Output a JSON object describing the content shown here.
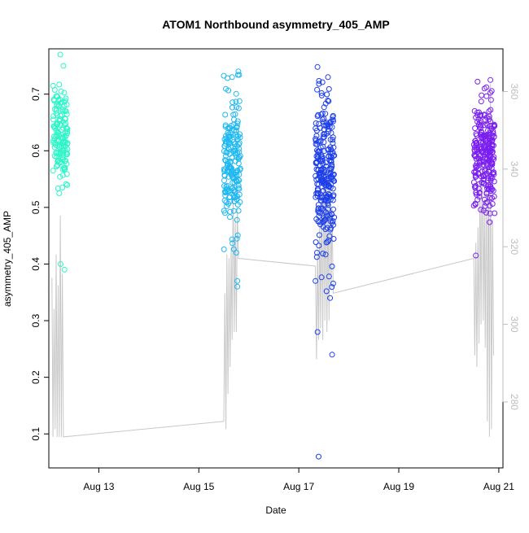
{
  "chart_data": {
    "type": "scatter",
    "title": "ATOM1 Northbound asymmetry_405_AMP",
    "xlabel": "Date",
    "ylabel": "asymmetry_405_AMP",
    "secondary_ylabel": "",
    "x_unit": "days since Aug 12 00:00",
    "x_ticks": [
      "Aug 13",
      "Aug 15",
      "Aug 17",
      "Aug 19",
      "Aug 21"
    ],
    "y_ticks": [
      "0.1",
      "0.2",
      "0.3",
      "0.4",
      "0.5",
      "0.6",
      "0.7"
    ],
    "y2_ticks": [
      "280",
      "300",
      "320",
      "340",
      "360"
    ],
    "xlim": [
      "Aug 12 00:00",
      "Aug 21 02:00"
    ],
    "ylim": [
      0.04,
      0.78
    ],
    "y2lim": [
      263,
      371
    ],
    "grid": false,
    "legend": "none",
    "colors": {
      "cluster_1": "#2ef5c8",
      "cluster_2": "#1fb8f0",
      "cluster_3": "#1d3fea",
      "cluster_4": "#7a1ff0",
      "secondary_line": "#c8c8c8",
      "right_axis": "#bdbdbd"
    },
    "clusters": [
      {
        "x_start": "Aug 12 02:00",
        "x_end": "Aug 12 09:00",
        "y_center": 0.63,
        "y_spread": 0.05,
        "n": 150,
        "color": "cluster_1"
      },
      {
        "x_start": "Aug 15 12:00",
        "x_end": "Aug 15 20:00",
        "y_center": 0.58,
        "y_spread": 0.07,
        "n": 190,
        "color": "cluster_2"
      },
      {
        "x_start": "Aug 17 08:00",
        "x_end": "Aug 17 17:00",
        "y_center": 0.55,
        "y_spread": 0.09,
        "n": 260,
        "color": "cluster_3"
      },
      {
        "x_start": "Aug 20 12:00",
        "x_end": "Aug 20 22:00",
        "y_center": 0.59,
        "y_spread": 0.06,
        "n": 260,
        "color": "cluster_4"
      }
    ],
    "outliers": [
      {
        "x": "Aug 12 05:30",
        "y": 0.77
      },
      {
        "x": "Aug 12 07:00",
        "y": 0.75
      },
      {
        "x": "Aug 12 05:00",
        "y": 0.525
      },
      {
        "x": "Aug 12 06:30",
        "y": 0.535
      },
      {
        "x": "Aug 12 05:40",
        "y": 0.4
      },
      {
        "x": "Aug 12 07:30",
        "y": 0.39
      },
      {
        "x": "Aug 15 16:00",
        "y": 0.73
      },
      {
        "x": "Aug 15 19:00",
        "y": 0.74
      },
      {
        "x": "Aug 15 18:00",
        "y": 0.42
      },
      {
        "x": "Aug 15 18:30",
        "y": 0.37
      },
      {
        "x": "Aug 15 18:30",
        "y": 0.36
      },
      {
        "x": "Aug 17 09:00",
        "y": 0.28
      },
      {
        "x": "Aug 17 09:30",
        "y": 0.06
      },
      {
        "x": "Aug 17 16:00",
        "y": 0.24
      },
      {
        "x": "Aug 17 15:00",
        "y": 0.34
      },
      {
        "x": "Aug 17 08:00",
        "y": 0.37
      },
      {
        "x": "Aug 17 14:00",
        "y": 0.73
      },
      {
        "x": "Aug 20 13:00",
        "y": 0.415
      },
      {
        "x": "Aug 20 20:00",
        "y": 0.725
      }
    ],
    "secondary_series": {
      "axis": "right",
      "points": [
        {
          "x": "Aug 12 01:30",
          "y": 312
        },
        {
          "x": "Aug 12 02:00",
          "y": 271
        },
        {
          "x": "Aug 12 02:30",
          "y": 304
        },
        {
          "x": "Aug 12 03:00",
          "y": 273
        },
        {
          "x": "Aug 12 03:30",
          "y": 318
        },
        {
          "x": "Aug 12 04:00",
          "y": 271
        },
        {
          "x": "Aug 12 04:30",
          "y": 310
        },
        {
          "x": "Aug 12 05:00",
          "y": 271
        },
        {
          "x": "Aug 12 05:30",
          "y": 328
        },
        {
          "x": "Aug 12 06:00",
          "y": 271
        },
        {
          "x": "Aug 12 06:30",
          "y": 313
        },
        {
          "x": "Aug 12 07:00",
          "y": 271
        },
        {
          "x": "Aug 15 12:00",
          "y": 275
        },
        {
          "x": "Aug 15 12:30",
          "y": 308
        },
        {
          "x": "Aug 15 13:00",
          "y": 273
        },
        {
          "x": "Aug 15 13:30",
          "y": 318
        },
        {
          "x": "Aug 15 14:00",
          "y": 282
        },
        {
          "x": "Aug 15 14:30",
          "y": 317
        },
        {
          "x": "Aug 15 15:00",
          "y": 289
        },
        {
          "x": "Aug 15 15:30",
          "y": 320
        },
        {
          "x": "Aug 15 16:00",
          "y": 296
        },
        {
          "x": "Aug 15 16:30",
          "y": 336
        },
        {
          "x": "Aug 15 17:00",
          "y": 298
        },
        {
          "x": "Aug 15 17:30",
          "y": 327
        },
        {
          "x": "Aug 15 18:00",
          "y": 298
        },
        {
          "x": "Aug 15 18:30",
          "y": 330
        },
        {
          "x": "Aug 15 19:00",
          "y": 317
        },
        {
          "x": "Aug 17 08:00",
          "y": 315
        },
        {
          "x": "Aug 17 08:30",
          "y": 291
        },
        {
          "x": "Aug 17 09:00",
          "y": 319
        },
        {
          "x": "Aug 17 09:30",
          "y": 296
        },
        {
          "x": "Aug 17 10:00",
          "y": 327
        },
        {
          "x": "Aug 17 10:30",
          "y": 299
        },
        {
          "x": "Aug 17 11:00",
          "y": 335
        },
        {
          "x": "Aug 17 11:30",
          "y": 296
        },
        {
          "x": "Aug 17 12:00",
          "y": 345
        },
        {
          "x": "Aug 17 12:30",
          "y": 301
        },
        {
          "x": "Aug 17 13:00",
          "y": 340
        },
        {
          "x": "Aug 17 13:30",
          "y": 298
        },
        {
          "x": "Aug 17 14:00",
          "y": 335
        },
        {
          "x": "Aug 17 14:30",
          "y": 301
        },
        {
          "x": "Aug 17 15:00",
          "y": 340
        },
        {
          "x": "Aug 17 15:30",
          "y": 309
        },
        {
          "x": "Aug 17 16:00",
          "y": 330
        },
        {
          "x": "Aug 17 16:30",
          "y": 308
        },
        {
          "x": "Aug 20 12:00",
          "y": 317
        },
        {
          "x": "Aug 20 12:30",
          "y": 292
        },
        {
          "x": "Aug 20 13:00",
          "y": 321
        },
        {
          "x": "Aug 20 13:30",
          "y": 289
        },
        {
          "x": "Aug 20 14:00",
          "y": 325
        },
        {
          "x": "Aug 20 14:30",
          "y": 295
        },
        {
          "x": "Aug 20 15:00",
          "y": 337
        },
        {
          "x": "Aug 20 15:30",
          "y": 300
        },
        {
          "x": "Aug 20 16:00",
          "y": 343
        },
        {
          "x": "Aug 20 16:30",
          "y": 301
        },
        {
          "x": "Aug 20 17:00",
          "y": 333
        },
        {
          "x": "Aug 20 17:30",
          "y": 294
        },
        {
          "x": "Aug 20 18:00",
          "y": 338
        },
        {
          "x": "Aug 20 18:30",
          "y": 275
        },
        {
          "x": "Aug 20 19:00",
          "y": 350
        },
        {
          "x": "Aug 20 19:30",
          "y": 271
        },
        {
          "x": "Aug 20 20:00",
          "y": 362
        },
        {
          "x": "Aug 20 20:30",
          "y": 273
        },
        {
          "x": "Aug 20 21:00",
          "y": 327
        },
        {
          "x": "Aug 20 21:30",
          "y": 292
        }
      ]
    }
  }
}
